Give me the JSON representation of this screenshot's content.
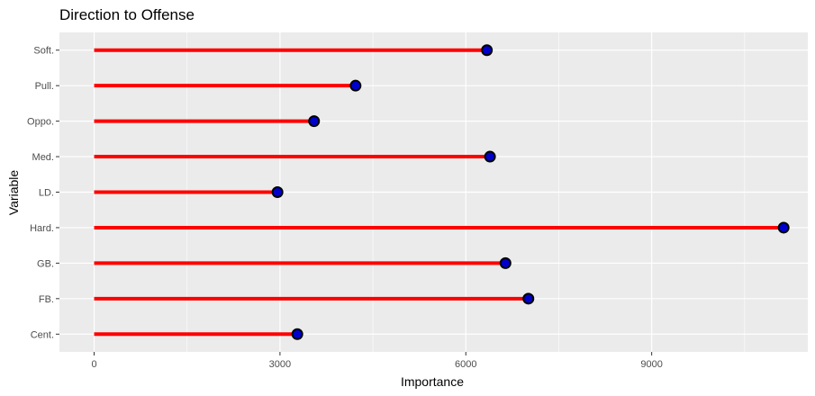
{
  "chart_data": {
    "type": "lollipop",
    "title": "Direction to Offense",
    "xlabel": "Importance",
    "ylabel": "Variable",
    "orientation": "horizontal",
    "categories": [
      "Cent.",
      "FB.",
      "GB.",
      "Hard.",
      "LD.",
      "Med.",
      "Oppo.",
      "Pull.",
      "Soft."
    ],
    "values": [
      3280,
      7010,
      6640,
      11130,
      2960,
      6390,
      3550,
      4220,
      6340
    ],
    "xlim": [
      -560,
      11520
    ],
    "xticks": [
      0,
      3000,
      6000,
      9000
    ],
    "xtick_labels": [
      "0",
      "3000",
      "6000",
      "9000"
    ],
    "grid": true,
    "colors": {
      "panel": "#ebebeb",
      "grid": "#ffffff",
      "segment": "#ff0000",
      "point_fill": "#0000cd",
      "point_stroke": "#000000"
    }
  }
}
